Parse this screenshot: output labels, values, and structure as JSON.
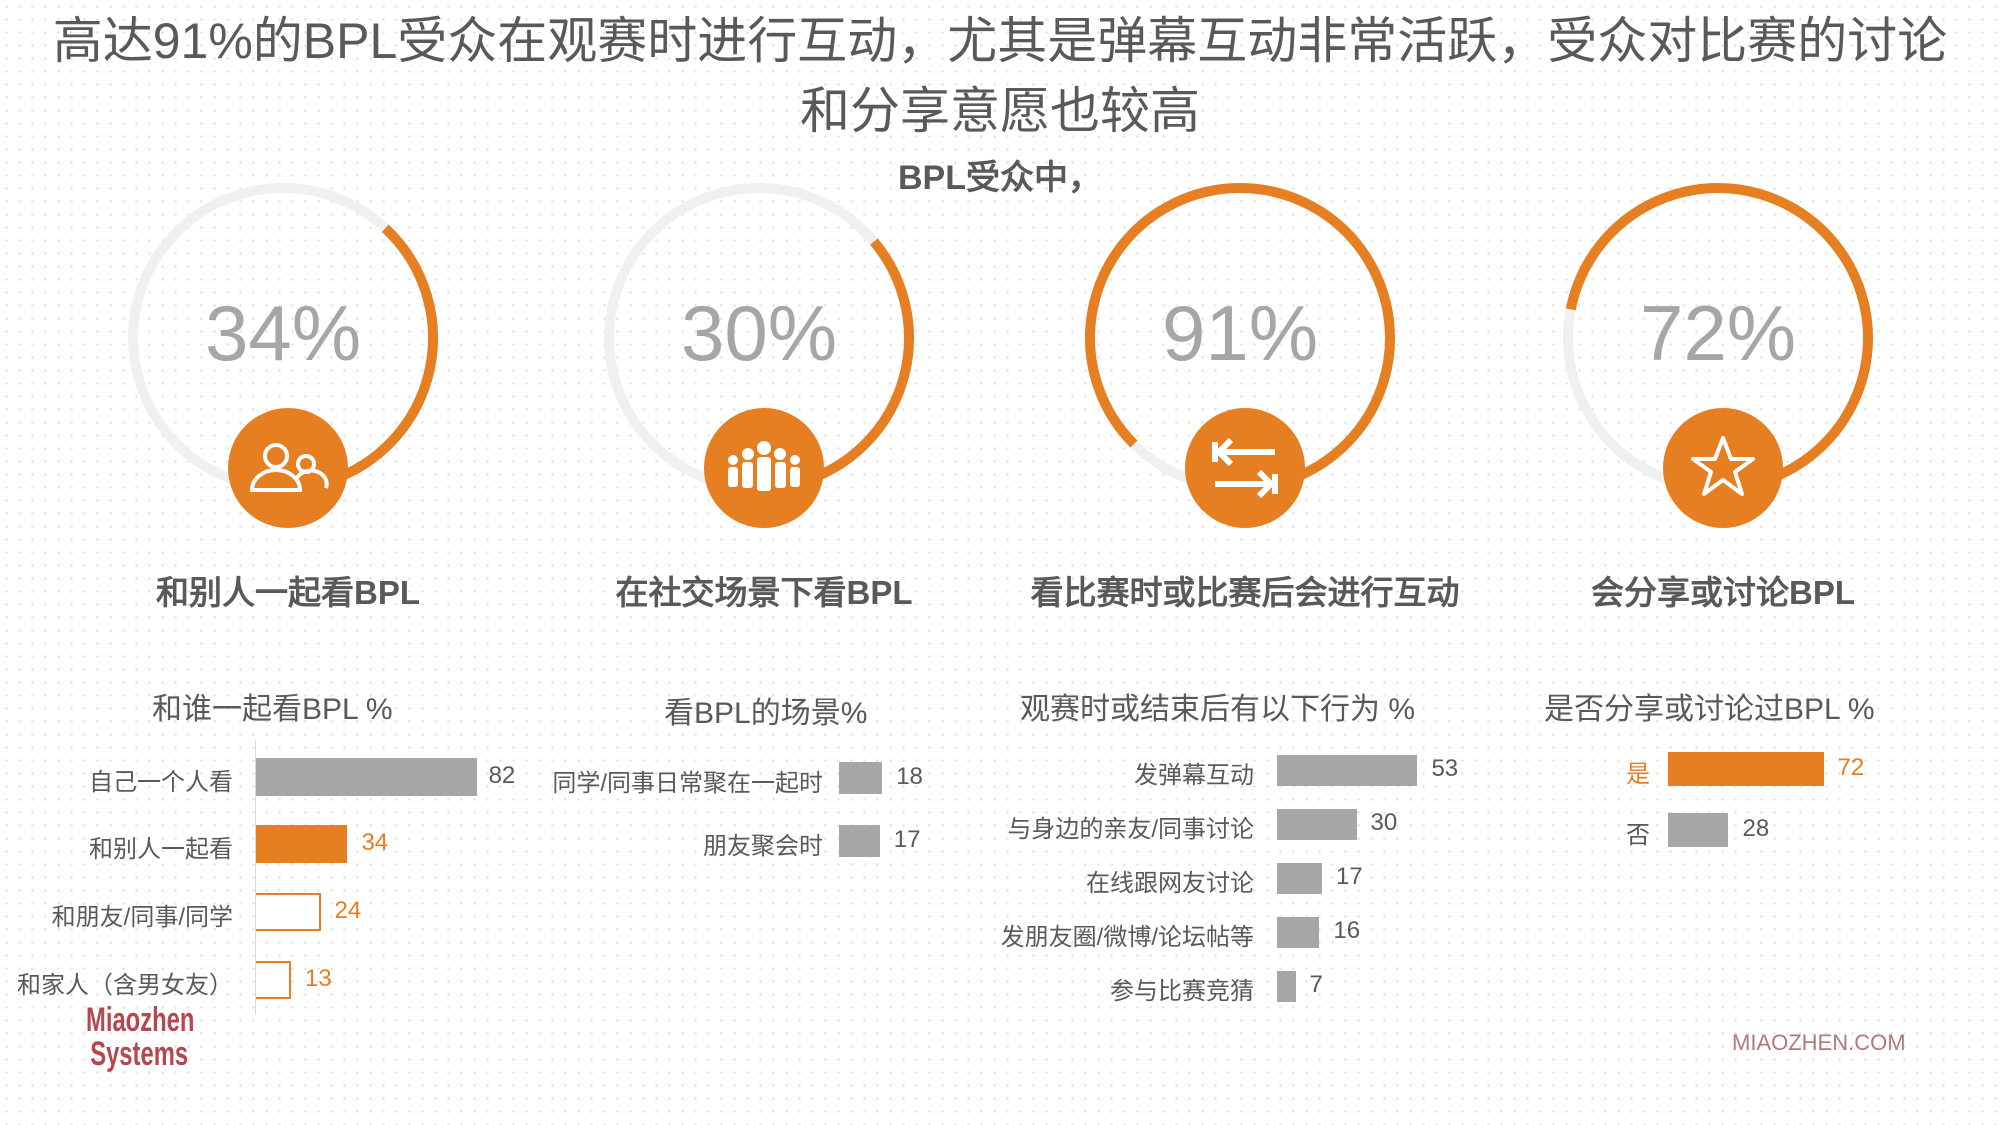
{
  "header": {
    "title_line1": "高达91%的BPL受众在观赛时进行互动，尤其是弹幕互动非常活跃，受众对比赛的讨论",
    "title_line2": "和分享意愿也较高",
    "subtitle": "BPL受众中，"
  },
  "colors": {
    "accent": "#e67e22",
    "bar_gray": "#a6a6a6",
    "track": "#f0f0f0",
    "text": "#595959"
  },
  "metrics": [
    {
      "percent": 34,
      "value_text": "34%",
      "label": "和别人一起看BPL",
      "icon": "people-pair-icon"
    },
    {
      "percent": 30,
      "value_text": "30%",
      "label": "在社交场景下看BPL",
      "icon": "group-icon"
    },
    {
      "percent": 91,
      "value_text": "91%",
      "label": "看比赛时或比赛后会进行互动",
      "icon": "exchange-arrows-icon"
    },
    {
      "percent": 72,
      "value_text": "72%",
      "label": "会分享或讨论BPL",
      "icon": "star-icon"
    }
  ],
  "chart_data": [
    {
      "type": "bar",
      "title": "和谁一起看BPL %",
      "categories": [
        "自己一个人看",
        "和别人一起看",
        "和朋友/同事/同学",
        "和家人（含男女友）"
      ],
      "values": [
        82,
        34,
        24,
        13
      ],
      "value_labels": [
        "82",
        "34",
        "24",
        "13"
      ]
    },
    {
      "type": "bar",
      "title": "看BPL的场景%",
      "categories": [
        "同学/同事日常聚在一起时",
        "朋友聚会时"
      ],
      "values": [
        18,
        17
      ],
      "value_labels": [
        "18",
        "17"
      ]
    },
    {
      "type": "bar",
      "title": "观赛时或结束后有以下行为 %",
      "categories": [
        "发弹幕互动",
        "与身边的亲友/同事讨论",
        "在线跟网友讨论",
        "发朋友圈/微博/论坛帖等",
        "参与比赛竞猜"
      ],
      "values": [
        53,
        30,
        17,
        16,
        7
      ],
      "value_labels": [
        "53",
        "30",
        "17",
        "16",
        "7"
      ]
    },
    {
      "type": "bar",
      "title": "是否分享或讨论过BPL %",
      "categories": [
        "是",
        "否"
      ],
      "values": [
        72,
        28
      ],
      "value_labels": [
        "72",
        "28"
      ]
    }
  ],
  "footer": {
    "logo_line1": "Miaozhen",
    "logo_line2": "Systems",
    "website": "MIAOZHEN.COM"
  }
}
